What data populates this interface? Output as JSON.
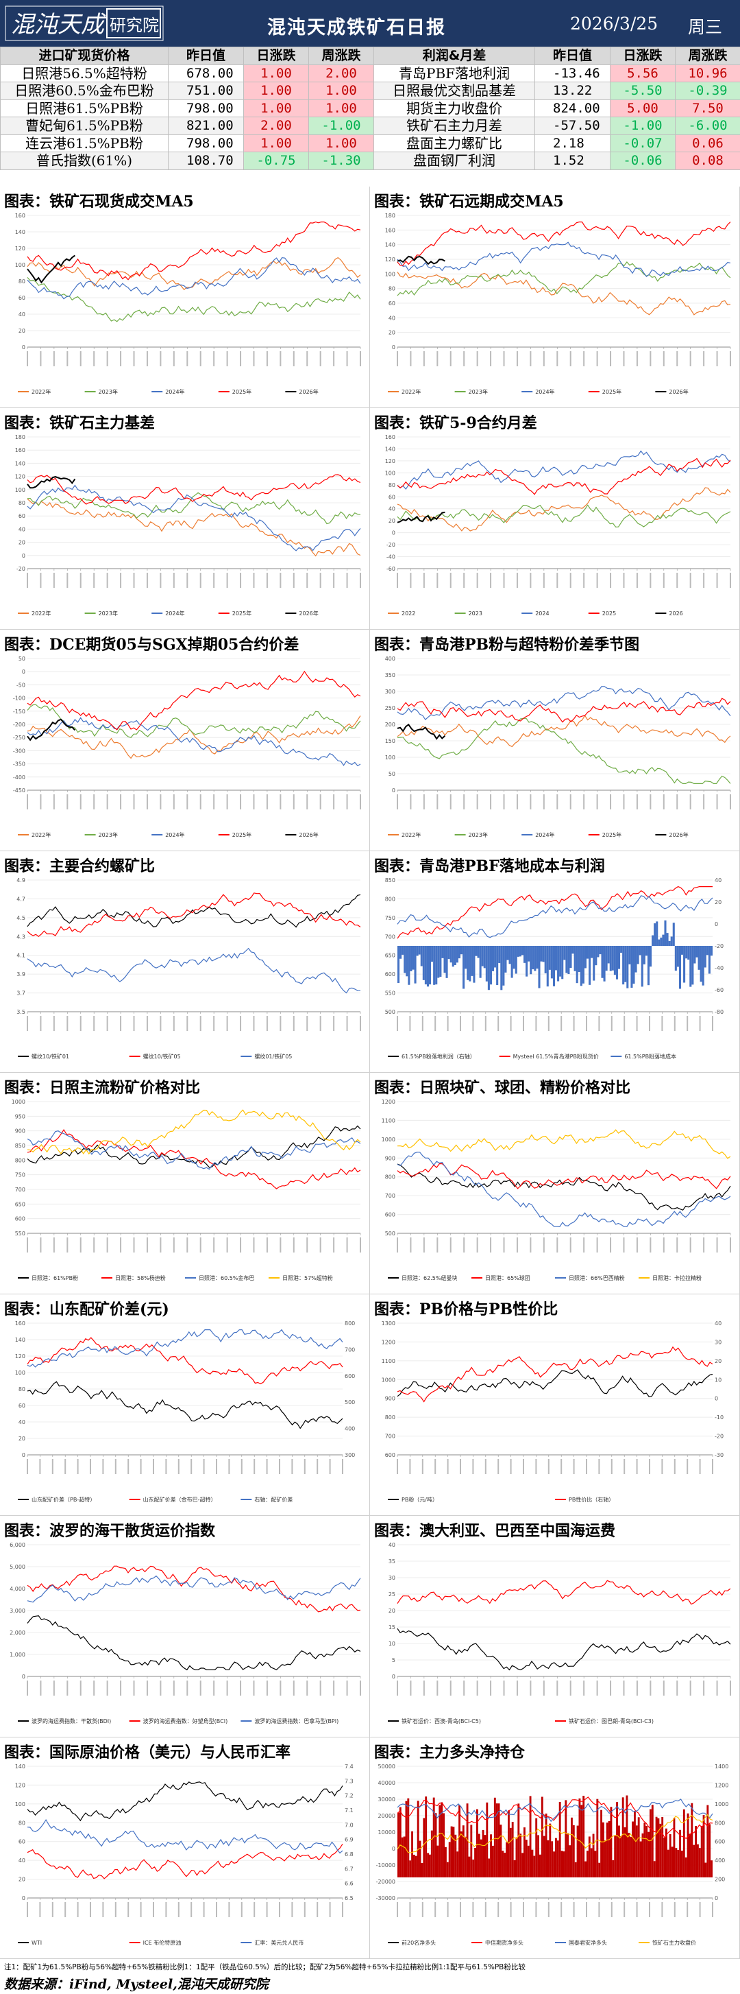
{
  "header": {
    "title": "混沌天成铁矿石日报",
    "date": "2026/3/25",
    "weekday": "周三",
    "logo_text": "混沌天成研究院"
  },
  "colors": {
    "header_bg": "#1f3864",
    "up_bg": "#ffc7ce",
    "up_text": "#c00000",
    "down_bg": "#c6efce",
    "down_text": "#00b050",
    "y2022": "#ed7d31",
    "y2023": "#70ad47",
    "y2024": "#4472c4",
    "y2025": "#ff0000",
    "y2026": "#000000"
  },
  "left_table": {
    "headers": [
      "进口矿现货价格",
      "昨日值",
      "日涨跌",
      "周涨跌"
    ],
    "rows": [
      {
        "name": "日照港56.5%超特粉",
        "value": "678.00",
        "day": "1.00",
        "day_dir": "up",
        "week": "2.00",
        "week_dir": "up"
      },
      {
        "name": "日照港60.5%金布巴粉",
        "value": "751.00",
        "day": "1.00",
        "day_dir": "up",
        "week": "1.00",
        "week_dir": "up"
      },
      {
        "name": "日照港61.5%PB粉",
        "value": "798.00",
        "day": "1.00",
        "day_dir": "up",
        "week": "1.00",
        "week_dir": "up"
      },
      {
        "name": "曹妃甸61.5%PB粉",
        "value": "821.00",
        "day": "2.00",
        "day_dir": "up",
        "week": "-1.00",
        "week_dir": "down"
      },
      {
        "name": "连云港61.5%PB粉",
        "value": "798.00",
        "day": "1.00",
        "day_dir": "up",
        "week": "1.00",
        "week_dir": "up"
      },
      {
        "name": "普氏指数(61%)",
        "value": "108.70",
        "day": "-0.75",
        "day_dir": "down",
        "week": "-1.30",
        "week_dir": "down"
      }
    ]
  },
  "right_table": {
    "headers": [
      "利润&月差",
      "昨日值",
      "日涨跌",
      "周涨跌"
    ],
    "rows": [
      {
        "name": "青岛PBF落地利润",
        "value": "-13.46",
        "day": "5.56",
        "day_dir": "up",
        "week": "10.96",
        "week_dir": "up"
      },
      {
        "name": "日照最优交割品基差",
        "value": "13.22",
        "day": "-5.50",
        "day_dir": "down",
        "week": "-0.39",
        "week_dir": "down"
      },
      {
        "name": "期货主力收盘价",
        "value": "824.00",
        "day": "5.00",
        "day_dir": "up",
        "week": "7.50",
        "week_dir": "up"
      },
      {
        "name": "铁矿石主力月差",
        "value": "-57.50",
        "day": "-1.00",
        "day_dir": "down",
        "week": "-6.00",
        "week_dir": "down"
      },
      {
        "name": "盘面主力螺矿比",
        "value": "2.18",
        "day": "-0.07",
        "day_dir": "down",
        "week": "0.06",
        "week_dir": "up"
      },
      {
        "name": "盘面钢厂利润",
        "value": "1.52",
        "day": "-0.06",
        "day_dir": "down",
        "week": "0.08",
        "week_dir": "up"
      }
    ]
  },
  "charts": [
    {
      "title": "图表：铁矿石现货成交MA5",
      "legend": [
        "2022年",
        "2023年",
        "2024年",
        "2025年",
        "2026年"
      ],
      "yticks": [
        "0",
        "20",
        "40",
        "60",
        "80",
        "100",
        "120",
        "140",
        "160"
      ],
      "kind": "seasonal"
    },
    {
      "title": "图表：铁矿石远期成交MA5",
      "legend": [
        "2022年",
        "2023年",
        "2024年",
        "2025年",
        "2026年"
      ],
      "yticks": [
        "0",
        "20",
        "40",
        "60",
        "80",
        "100",
        "120",
        "140",
        "160",
        "180"
      ],
      "kind": "seasonal"
    },
    {
      "title": "图表：铁矿石主力基差",
      "legend": [
        "2022年",
        "2023年",
        "2024年",
        "2025年",
        "2026年"
      ],
      "yticks": [
        "-20",
        "0",
        "20",
        "40",
        "60",
        "80",
        "100",
        "120",
        "140",
        "160",
        "180"
      ],
      "kind": "seasonal"
    },
    {
      "title": "图表：铁矿5-9合约月差",
      "legend": [
        "2022",
        "2023",
        "2024",
        "2025",
        "2026"
      ],
      "yticks": [
        "-60",
        "-40",
        "-20",
        "0",
        "20",
        "40",
        "60",
        "80",
        "100",
        "120",
        "140",
        "160"
      ],
      "kind": "seasonal"
    },
    {
      "title": "图表：DCE期货05与SGX掉期05合约价差",
      "legend": [
        "2022年",
        "2023年",
        "2024年",
        "2025年",
        "2026年"
      ],
      "yticks": [
        "-450",
        "-400",
        "-350",
        "-300",
        "-250",
        "-200",
        "-150",
        "-100",
        "-50",
        "0",
        "50"
      ],
      "kind": "seasonal"
    },
    {
      "title": "图表：青岛港PB粉与超特粉价差季节图",
      "legend": [
        "2022年",
        "2023年",
        "2024年",
        "2025年",
        "2026年"
      ],
      "yticks": [
        "0",
        "50",
        "100",
        "150",
        "200",
        "250",
        "300",
        "350",
        "400"
      ],
      "kind": "seasonal"
    },
    {
      "title": "图表：主要合约螺矿比",
      "legend": [
        "螺纹10/铁矿01",
        "螺纹10/铁矿05",
        "螺纹01/铁矿05"
      ],
      "yticks": [
        "3.5",
        "3.7",
        "3.9",
        "4.1",
        "4.3",
        "4.5",
        "4.7",
        "4.9"
      ],
      "kind": "ratio"
    },
    {
      "title": "图表：青岛港PBF落地成本与利润",
      "legend": [
        "61.5%PB粉落地利润（右轴）",
        "Mysteel 61.5%青岛港PB粉现货价",
        "61.5%PB粉落地成本"
      ],
      "yticks": [
        "500",
        "550",
        "600",
        "650",
        "700",
        "750",
        "800",
        "850"
      ],
      "yticks_right": [
        "-80",
        "-60",
        "-40",
        "-20",
        "0",
        "20",
        "40"
      ],
      "kind": "profit"
    },
    {
      "title": "图表：日照主流粉矿价格对比",
      "legend": [
        "日照港：61%PB粉",
        "日照港：58%杨迪粉",
        "日照港：60.5%金布巴",
        "日照港：57%超特粉"
      ],
      "yticks": [
        "550",
        "600",
        "650",
        "700",
        "750",
        "800",
        "850",
        "900",
        "950",
        "1000"
      ],
      "kind": "multi"
    },
    {
      "title": "图表：日照块矿、球团、精粉价格对比",
      "legend": [
        "日照港：62.5%纽曼块",
        "日照港：65%球团",
        "日照港：66%巴西精粉",
        "日照港：卡拉拉精粉"
      ],
      "yticks": [
        "500",
        "600",
        "700",
        "800",
        "900",
        "1000",
        "1100",
        "1200"
      ],
      "kind": "multi"
    },
    {
      "title": "图表：山东配矿价差(元)",
      "legend": [
        "山东配矿价差（PB-超特）",
        "山东配矿价差（金布巴-超特）",
        "右轴：配矿价差"
      ],
      "yticks": [
        "0",
        "20",
        "40",
        "60",
        "80",
        "100",
        "120",
        "140",
        "160"
      ],
      "yticks_right": [
        "300",
        "400",
        "500",
        "600",
        "700",
        "800"
      ],
      "kind": "multi"
    },
    {
      "title": "图表：PB价格与PB性价比",
      "legend": [
        "PB粉（元/吨）",
        "PB性价比（右轴）"
      ],
      "yticks": [
        "600",
        "700",
        "800",
        "900",
        "1000",
        "1100",
        "1200",
        "1300"
      ],
      "yticks_right": [
        "-30",
        "-20",
        "-10",
        "0",
        "10",
        "20",
        "30",
        "40"
      ],
      "kind": "multi"
    },
    {
      "title": "图表：波罗的海干散货运价指数",
      "legend": [
        "波罗的海运费指数：干散货(BDI)",
        "波罗的海运费指数：好望角型(BCI)",
        "波罗的海运费指数：巴拿马型(BPI)"
      ],
      "yticks": [
        "0",
        "1,000",
        "2,000",
        "3,000",
        "4,000",
        "5,000",
        "6,000"
      ],
      "kind": "multi"
    },
    {
      "title": "图表：澳大利亚、巴西至中国海运费",
      "legend": [
        "铁矿石运价：西澳-青岛(BCI-C5)",
        "铁矿石运价：图巴朗-青岛(BCI-C3)"
      ],
      "yticks": [
        "0",
        "5",
        "10",
        "15",
        "20",
        "25",
        "30",
        "35",
        "40"
      ],
      "kind": "multi"
    },
    {
      "title": "图表：国际原油价格（美元）与人民币汇率",
      "legend": [
        "WTI",
        "ICE 布伦特原油",
        "汇率：美元兑人民币"
      ],
      "yticks": [
        "0",
        "20",
        "40",
        "60",
        "80",
        "100",
        "120",
        "140"
      ],
      "yticks_right": [
        "6.5",
        "6.6",
        "6.7",
        "6.8",
        "6.9",
        "7.0",
        "7.1",
        "7.2",
        "7.3",
        "7.4"
      ],
      "kind": "multi"
    },
    {
      "title": "图表：主力多头净持仓",
      "legend": [
        "前20名净多头",
        "中信期货净多头",
        "国泰君安净多头",
        "铁矿石主力收盘价"
      ],
      "yticks": [
        "-30000",
        "-20000",
        "-10000",
        "0",
        "10000",
        "20000",
        "30000",
        "40000",
        "50000"
      ],
      "yticks_right": [
        "0",
        "200",
        "400",
        "600",
        "800",
        "1000",
        "1200",
        "1400"
      ],
      "kind": "position"
    }
  ],
  "footnote": "注1：配矿1为61.5%PB粉与56%超特+65%铁精粉比例1：1配平（铁品位60.5%）后的比较；配矿2为56%超特+65%卡拉拉精粉比例1:1配平与61.5%PB粉比较",
  "source": "数据来源：iFind, Mysteel,混沌天成研究院"
}
